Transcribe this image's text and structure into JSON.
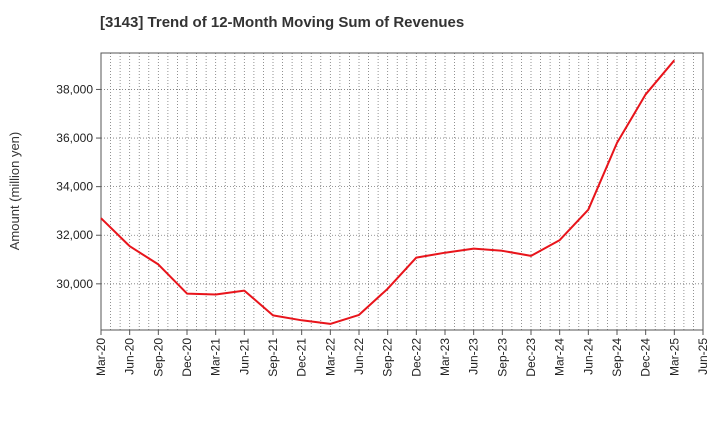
{
  "chart_data": {
    "type": "line",
    "title": "[3143]  Trend of 12-Month Moving Sum of Revenues",
    "xlabel": "",
    "ylabel": "Amount (million yen)",
    "x": [
      "Mar-20",
      "Jun-20",
      "Sep-20",
      "Dec-20",
      "Mar-21",
      "Jun-21",
      "Sep-21",
      "Dec-21",
      "Mar-22",
      "Jun-22",
      "Sep-22",
      "Dec-22",
      "Mar-23",
      "Jun-23",
      "Sep-23",
      "Dec-23",
      "Mar-24",
      "Jun-24",
      "Sep-24",
      "Dec-24",
      "Mar-25",
      "Jun-25"
    ],
    "series": [
      {
        "name": "",
        "color": "#e8141b",
        "values": [
          32700,
          31550,
          30800,
          29600,
          29560,
          29720,
          28700,
          28500,
          28350,
          28720,
          29800,
          31080,
          31280,
          31450,
          31360,
          31150,
          31800,
          33050,
          35800,
          37800,
          39200,
          null
        ]
      }
    ],
    "ylim": [
      28100,
      39500
    ],
    "yticks": [
      30000,
      32000,
      34000,
      36000,
      38000
    ],
    "ytick_labels": [
      "30,000",
      "32,000",
      "34,000",
      "36,000",
      "38,000"
    ],
    "grid": true,
    "grid_style": "dotted"
  }
}
